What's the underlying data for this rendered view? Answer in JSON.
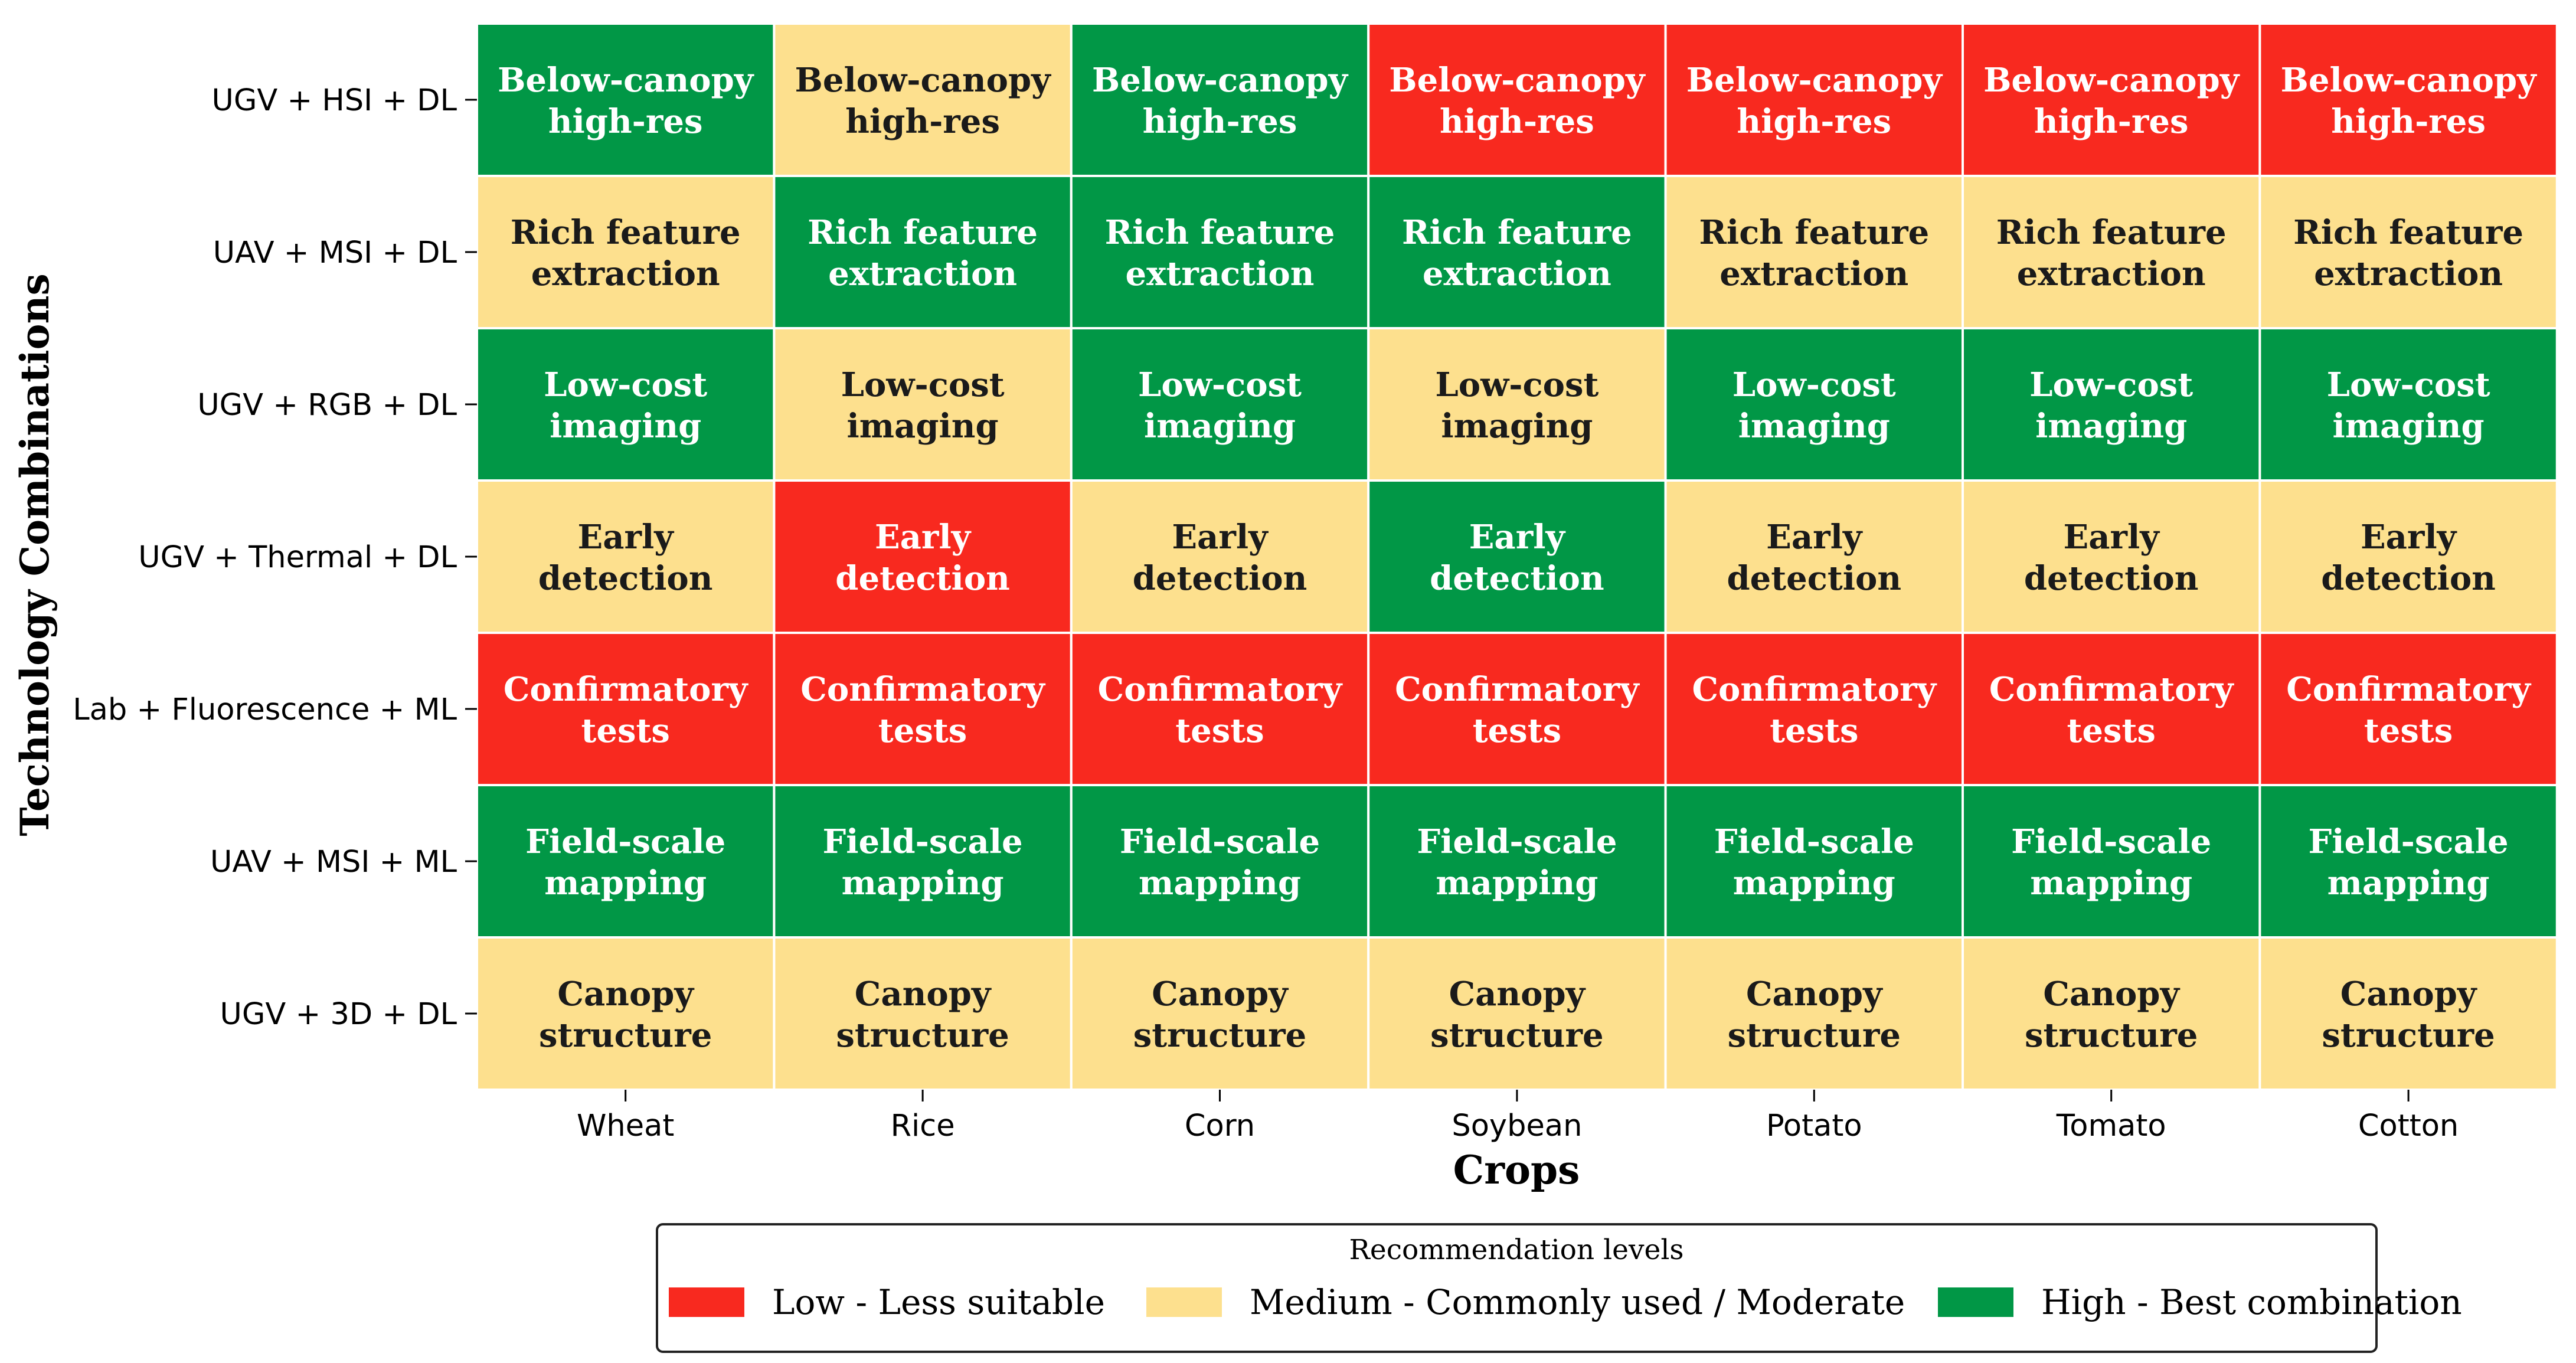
{
  "chart_data": {
    "type": "heatmap",
    "xlabel": "Crops",
    "ylabel": "Technology Combinations",
    "x_categories": [
      "Wheat",
      "Rice",
      "Corn",
      "Soybean",
      "Potato",
      "Tomato",
      "Cotton"
    ],
    "y_categories": [
      "UGV + HSI + DL",
      "UAV + MSI + DL",
      "UGV + RGB + DL",
      "UGV + Thermal + DL",
      "Lab + Fluorescence + ML",
      "UAV + MSI + ML",
      "UGV + 3D + DL"
    ],
    "row_annotations": [
      [
        "Below-canopy",
        "high-res"
      ],
      [
        "Rich feature",
        "extraction"
      ],
      [
        "Low-cost",
        "imaging"
      ],
      [
        "Early",
        "detection"
      ],
      [
        "Confirmatory",
        "tests"
      ],
      [
        "Field-scale",
        "mapping"
      ],
      [
        "Canopy",
        "structure"
      ]
    ],
    "levels": [
      {
        "key": "low",
        "label": "Low - Less suitable",
        "color": "#F8291F",
        "text_color": "#FFFFFF"
      },
      {
        "key": "medium",
        "label": "Medium - Commonly used / Moderate",
        "color": "#FDE08E",
        "text_color": "#1A1A1A"
      },
      {
        "key": "high",
        "label": "High - Best combination",
        "color": "#019746",
        "text_color": "#FFFFFF"
      }
    ],
    "values": [
      [
        "high",
        "medium",
        "high",
        "low",
        "low",
        "low",
        "low"
      ],
      [
        "medium",
        "high",
        "high",
        "high",
        "medium",
        "medium",
        "medium"
      ],
      [
        "high",
        "medium",
        "high",
        "medium",
        "high",
        "high",
        "high"
      ],
      [
        "medium",
        "low",
        "medium",
        "high",
        "medium",
        "medium",
        "medium"
      ],
      [
        "low",
        "low",
        "low",
        "low",
        "low",
        "low",
        "low"
      ],
      [
        "high",
        "high",
        "high",
        "high",
        "high",
        "high",
        "high"
      ],
      [
        "medium",
        "medium",
        "medium",
        "medium",
        "medium",
        "medium",
        "medium"
      ]
    ],
    "legend": {
      "title": "Recommendation levels",
      "position": "bottom-center"
    }
  }
}
